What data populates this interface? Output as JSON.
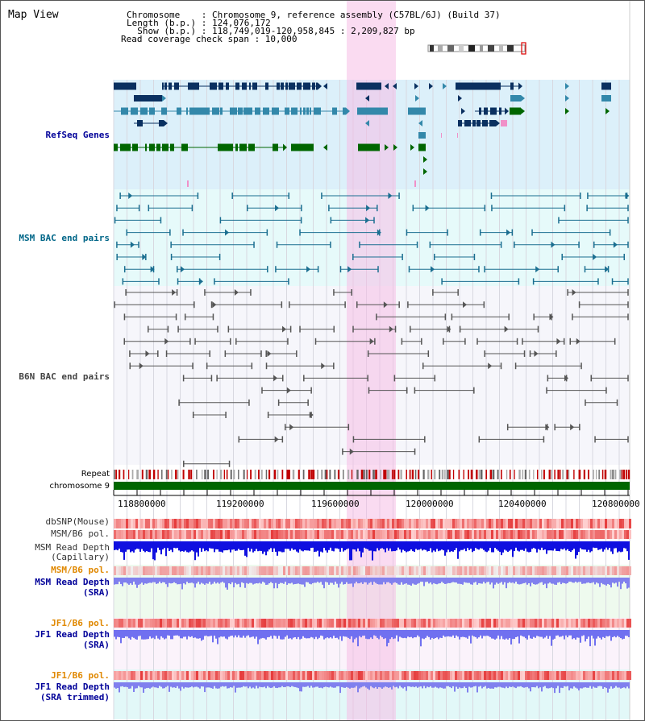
{
  "title": "Map View",
  "info": {
    "line1": "Chromosome    : Chromosome 9, reference assembly (C57BL/6J) (Build 37)",
    "line2": "Length (b.p.) : 124,076,172",
    "line3": "  Show (b.p.) : 118,749,019-120,958,845 : 2,209,827 bp",
    "line4": "Read coverage check span : 10,000"
  },
  "tracks": {
    "refseq": {
      "label": "RefSeq Genes",
      "color": "#000099",
      "bg": "#dcf0fa"
    },
    "msm_bac": {
      "label": "MSM BAC end pairs",
      "color": "#006688",
      "bg": "#e6fafa"
    },
    "b6n_bac": {
      "label": "B6N BAC end pairs",
      "color": "#444444",
      "bg": "#f4f4fa"
    },
    "repeat": {
      "label": "Repeat"
    },
    "chromosome": {
      "label": "chromosome 9"
    },
    "dbsnp": {
      "label": "dbSNP(Mouse)"
    },
    "msm_b6_pol": {
      "label": "MSM/B6 pol."
    },
    "msm_depth_cap": {
      "line1": "MSM Read Depth",
      "line2": "(Capillary)"
    },
    "msm_b6_pol_orange": {
      "label": "MSM/B6 pol."
    },
    "msm_depth_sra": {
      "line1": "MSM Read Depth",
      "line2": "(SRA)"
    },
    "jf1_b6_pol_1": {
      "label": "JF1/B6 pol."
    },
    "jf1_depth_sra": {
      "line1": "JF1 Read Depth",
      "line2": "(SRA)"
    },
    "jf1_b6_pol_2": {
      "label": "JF1/B6 pol."
    },
    "jf1_depth_trim": {
      "line1": "JF1 Read Depth",
      "line2": "(SRA trimmed)"
    }
  },
  "axis": {
    "ticks": [
      "118800000",
      "119200000",
      "119600000",
      "120000000",
      "120400000",
      "120800000"
    ]
  },
  "colors": {
    "highlight": "#f8d4f0",
    "gene_dark": "#0a3060",
    "gene_mid": "#3388aa",
    "gene_green": "#006600",
    "orange_label": "#e08800",
    "blue_label": "#000099"
  }
}
